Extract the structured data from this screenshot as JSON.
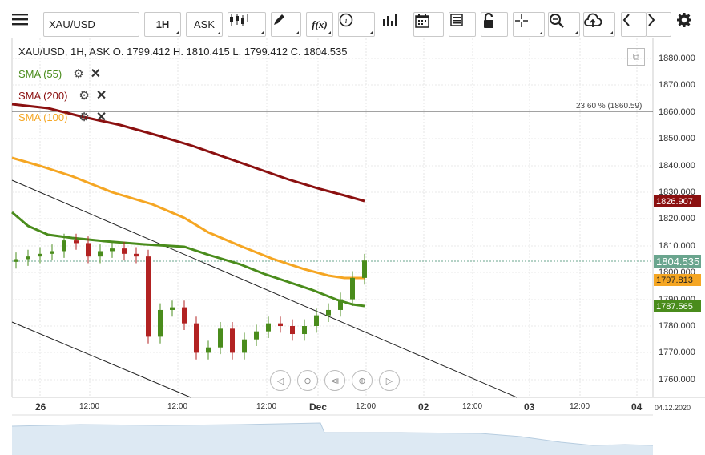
{
  "toolbar": {
    "symbol": "XAU/USD",
    "timeframe": "1H",
    "price_type": "ASK",
    "fx_label": "f(x)",
    "info_label": "i"
  },
  "legend": {
    "ohlc": "XAU/USD, 1H, ASK    O. 1799.412 H. 1810.415 L. 1799.412 C. 1804.535",
    "indicators": [
      {
        "label": "SMA (55)",
        "color": "#4a8c1c"
      },
      {
        "label": "SMA (200)",
        "color": "#8b1010"
      },
      {
        "label": "SMA (100)",
        "color": "#f5a623"
      }
    ]
  },
  "fib_label": "23.60 % (1860.59)",
  "y_axis": [
    "1880.000",
    "1870.000",
    "1860.000",
    "1850.000",
    "1840.000",
    "1830.000",
    "1820.000",
    "1810.000",
    "1800.000",
    "1790.000",
    "1780.000",
    "1770.000",
    "1760.000"
  ],
  "price_tags": {
    "sma200": {
      "value": "1826.907",
      "color": "#8b1010"
    },
    "current": {
      "value": "1804.535",
      "color": "#6aa58e"
    },
    "sma100": {
      "value": "1797.813",
      "color": "#f5a623"
    },
    "sma55": {
      "value": "1787.565",
      "color": "#4a8c1c"
    }
  },
  "x_axis": [
    {
      "label": "26",
      "bold": true
    },
    {
      "label": "12:00",
      "bold": false
    },
    {
      "label": "12:00",
      "bold": false
    },
    {
      "label": "12:00",
      "bold": false
    },
    {
      "label": "Dec",
      "bold": true
    },
    {
      "label": "12:00",
      "bold": false
    },
    {
      "label": "02",
      "bold": true
    },
    {
      "label": "12:00",
      "bold": false
    },
    {
      "label": "03",
      "bold": true
    },
    {
      "label": "12:00",
      "bold": false
    },
    {
      "label": "04",
      "bold": true
    },
    {
      "label": "04.12.2020",
      "bold": false
    }
  ],
  "chart_data": {
    "type": "line",
    "title": "XAU/USD, 1H, ASK",
    "ylim": [
      1755,
      1885
    ],
    "series": [
      {
        "name": "SMA (200)",
        "values": [
          1859,
          1857,
          1855,
          1852,
          1849,
          1845,
          1841,
          1838,
          1834,
          1830,
          1827
        ]
      },
      {
        "name": "SMA (100)",
        "values": [
          1843,
          1838,
          1833,
          1828,
          1820,
          1811,
          1805,
          1801,
          1799,
          1798,
          1798
        ]
      },
      {
        "name": "SMA (55)",
        "values": [
          1821,
          1812,
          1810,
          1809,
          1808,
          1806,
          1801,
          1796,
          1792,
          1789,
          1788
        ]
      }
    ],
    "candles_close": [
      1805,
      1806,
      1807,
      1808,
      1812,
      1811,
      1806,
      1808,
      1809,
      1807,
      1806,
      1776,
      1786,
      1787,
      1781,
      1770,
      1772,
      1779,
      1770,
      1775,
      1778,
      1781,
      1780,
      1777,
      1780,
      1784,
      1786,
      1790,
      1798,
      1804.5
    ]
  }
}
